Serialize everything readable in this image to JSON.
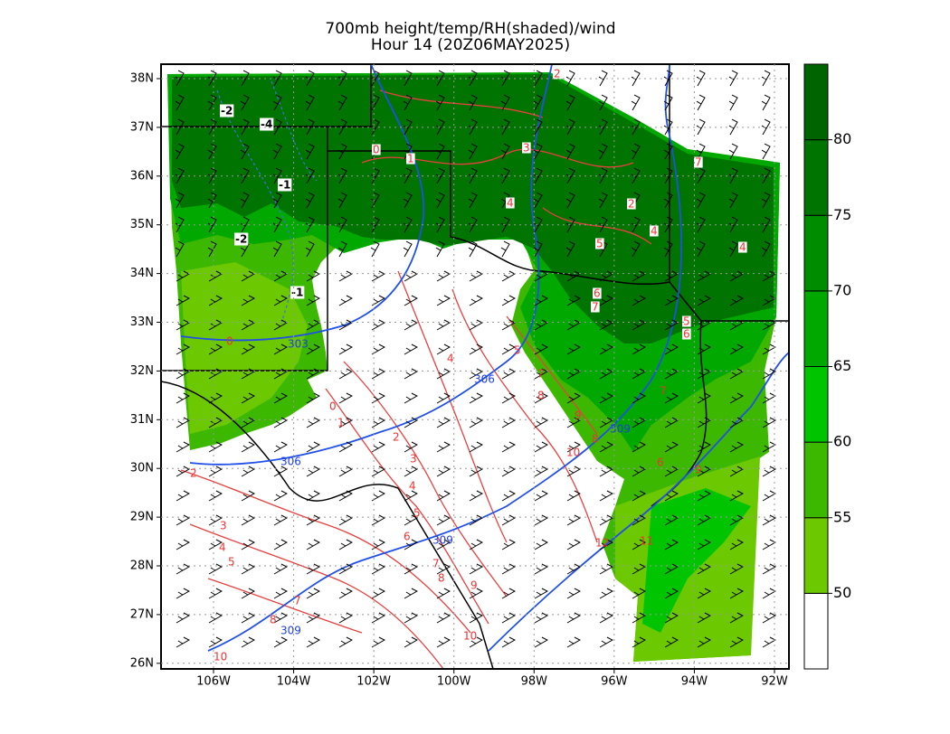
{
  "title": {
    "line1": "700mb height/temp/RH(shaded)/wind",
    "line2": "Hour 14 (20Z06MAY2025)"
  },
  "map": {
    "lat_labels": [
      "38N",
      "37N",
      "36N",
      "35N",
      "34N",
      "33N",
      "32N",
      "31N",
      "30N",
      "29N",
      "28N",
      "27N",
      "26N"
    ],
    "lon_labels": [
      "106W",
      "104W",
      "102W",
      "100W",
      "98W",
      "96W",
      "94W",
      "92W"
    ]
  },
  "colorbar": {
    "levels": [
      50,
      55,
      60,
      65,
      70,
      75,
      80
    ],
    "colors": [
      "#ffffff",
      "#6cc800",
      "#3cb800",
      "#00c400",
      "#00a800",
      "#008c00",
      "#007400",
      "#006400"
    ]
  },
  "contour_labels": {
    "temperature": [
      "0",
      "1",
      "3",
      "4",
      "2",
      "4",
      "5",
      "4",
      "6",
      "7",
      "5",
      "6",
      "4",
      "7",
      "0",
      "1",
      "2",
      "3",
      "4",
      "5",
      "6",
      "7",
      "8",
      "9",
      "10",
      "2",
      "3",
      "4",
      "5",
      "7",
      "8",
      "10",
      "9",
      "8",
      "10",
      "11",
      "12",
      "7",
      "8",
      "9",
      "0",
      "2",
      "7",
      "5",
      "6"
    ],
    "boxed": [
      "-2",
      "-4",
      "-1",
      "-2",
      "-1"
    ],
    "height": [
      "303",
      "306",
      "306",
      "309",
      "309",
      "309"
    ]
  }
}
